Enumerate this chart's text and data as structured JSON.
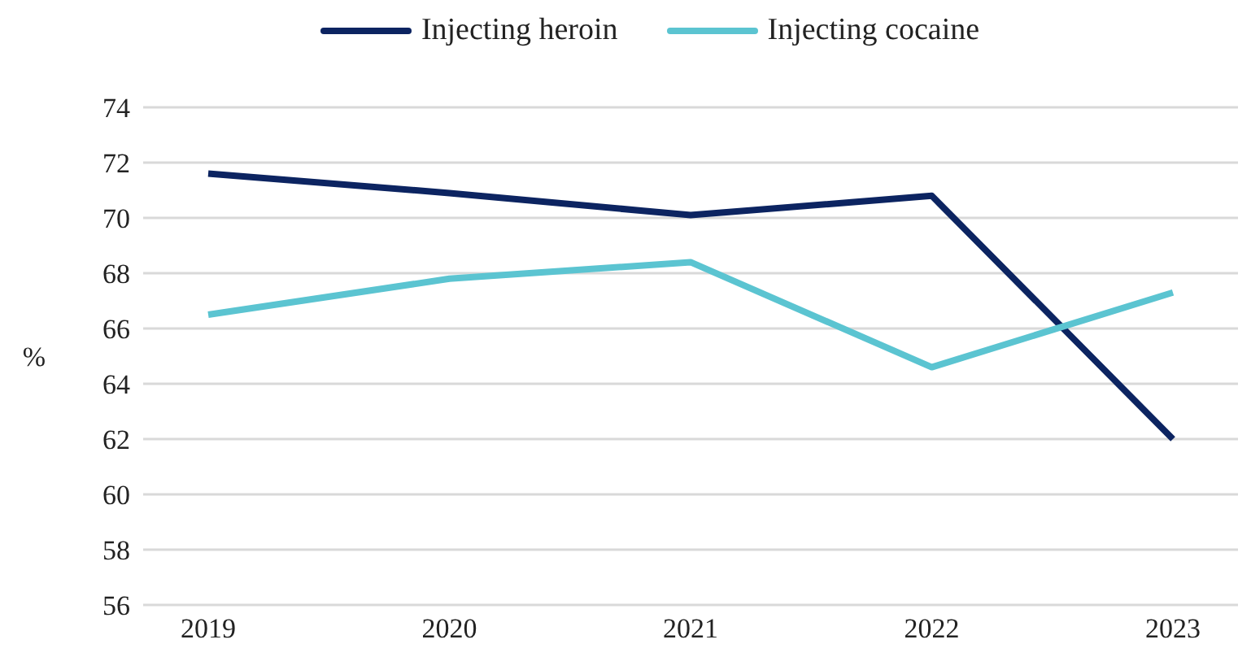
{
  "chart_data": {
    "type": "line",
    "categories": [
      "2019",
      "2020",
      "2021",
      "2022",
      "2023"
    ],
    "series": [
      {
        "name": "Injecting heroin",
        "color": "#0c2461",
        "values": [
          71.6,
          70.9,
          70.1,
          70.8,
          62.0
        ]
      },
      {
        "name": "Injecting cocaine",
        "color": "#5bc4d1",
        "values": [
          66.5,
          67.8,
          68.4,
          64.6,
          67.3
        ]
      }
    ],
    "ylabel": "%",
    "ylim": [
      56,
      74
    ],
    "yticks": [
      56,
      58,
      60,
      62,
      64,
      66,
      68,
      70,
      72,
      74
    ],
    "grid": "y",
    "legend": "top",
    "marker": "none"
  }
}
